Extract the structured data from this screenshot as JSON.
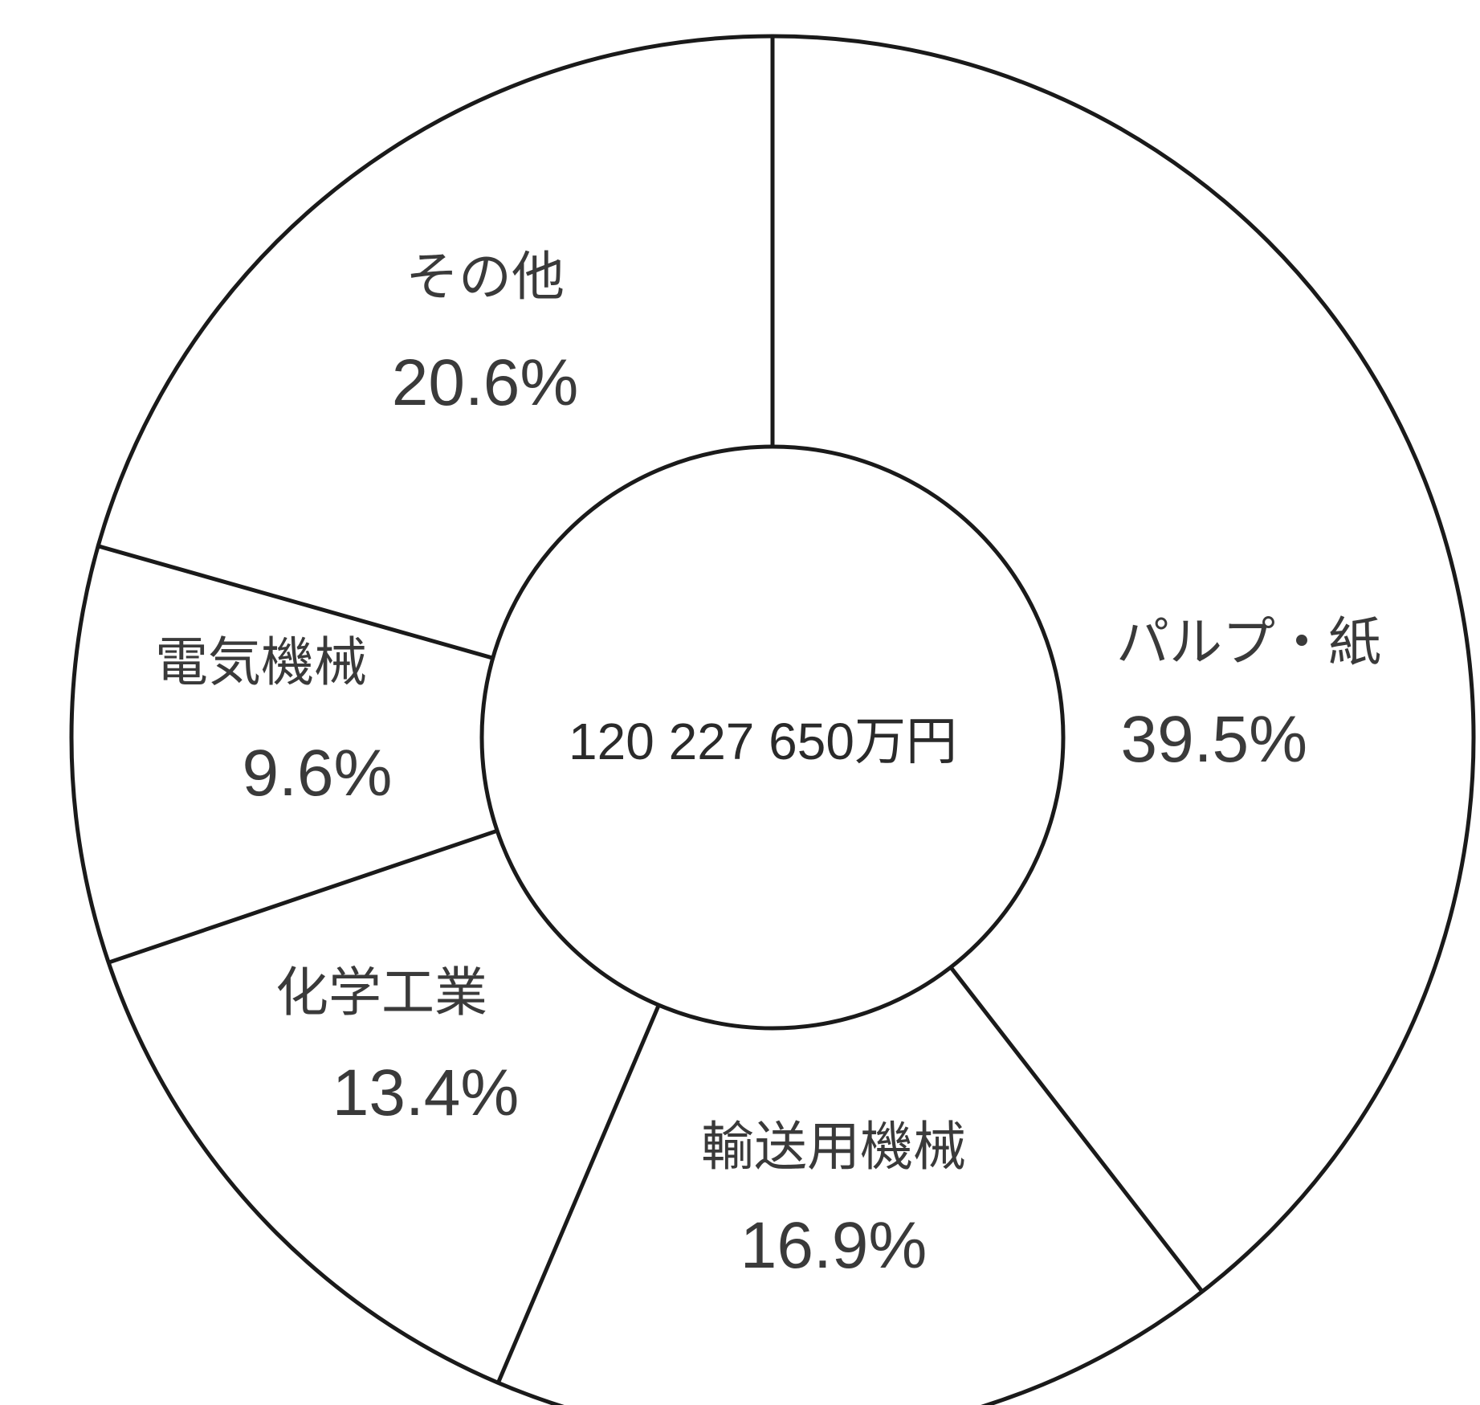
{
  "chart_data": {
    "type": "pie",
    "center_label": "120 227 650万円",
    "slices": [
      {
        "name": "パルプ・紙",
        "value": 39.5,
        "value_label": "39.5%"
      },
      {
        "name": "輸送用機械",
        "value": 16.9,
        "value_label": "16.9%"
      },
      {
        "name": "化学工業",
        "value": 13.4,
        "value_label": "13.4%"
      },
      {
        "name": "電気機械",
        "value": 9.6,
        "value_label": "9.6%"
      },
      {
        "name": "その他",
        "value": 20.6,
        "value_label": "20.6%"
      }
    ],
    "colors": {
      "line": "#1a1a1a",
      "fill": "#ffffff",
      "text": "#3a3a3a"
    }
  }
}
